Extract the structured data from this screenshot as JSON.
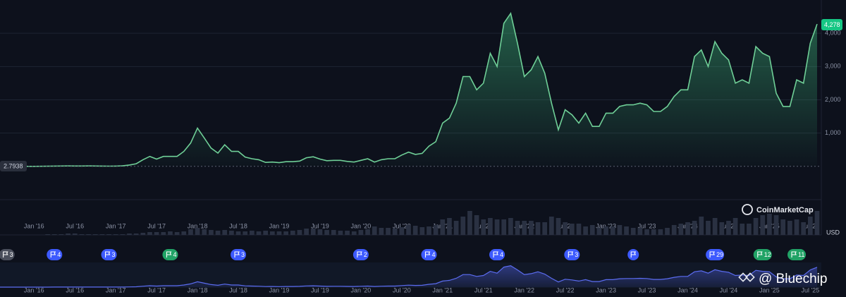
{
  "chart_data": {
    "type": "area",
    "start_price_label": "2.7938",
    "current_price_label": "4,278",
    "currency": "USD",
    "watermark": "CoinMarketCap",
    "credit": "@ Bluechip",
    "xlim": [
      "2015-08",
      "2025-08"
    ],
    "ylim": [
      -1000,
      5000
    ],
    "yticks": [
      {
        "value": 1000,
        "label": "1,000"
      },
      {
        "value": 2000,
        "label": "2,000"
      },
      {
        "value": 3000,
        "label": "3,000"
      },
      {
        "value": 4000,
        "label": "4,000"
      }
    ],
    "xticks": [
      {
        "value": "2016-01",
        "label": "Jan '16"
      },
      {
        "value": "2016-07",
        "label": "Jul '16"
      },
      {
        "value": "2017-01",
        "label": "Jan '17"
      },
      {
        "value": "2017-07",
        "label": "Jul '17"
      },
      {
        "value": "2018-01",
        "label": "Jan '18"
      },
      {
        "value": "2018-07",
        "label": "Jul '18"
      },
      {
        "value": "2019-01",
        "label": "Jan '19"
      },
      {
        "value": "2019-07",
        "label": "Jul '19"
      },
      {
        "value": "2020-01",
        "label": "Jan '20"
      },
      {
        "value": "2020-07",
        "label": "Jul '20"
      },
      {
        "value": "2021-01",
        "label": "Jan '21"
      },
      {
        "value": "2021-07",
        "label": "Jul '21"
      },
      {
        "value": "2022-01",
        "label": "Jan '22"
      },
      {
        "value": "2022-07",
        "label": "Jul '22"
      },
      {
        "value": "2023-01",
        "label": "Jan '23"
      },
      {
        "value": "2023-07",
        "label": "Jul '23"
      },
      {
        "value": "2024-01",
        "label": "Jan '24"
      },
      {
        "value": "2024-07",
        "label": "Jul '24"
      },
      {
        "value": "2025-01",
        "label": "Jan '25"
      },
      {
        "value": "2025-07",
        "label": "Jul '25"
      }
    ],
    "x": [
      "2015-08",
      "2015-09",
      "2015-10",
      "2015-11",
      "2015-12",
      "2016-01",
      "2016-02",
      "2016-03",
      "2016-04",
      "2016-05",
      "2016-06",
      "2016-07",
      "2016-08",
      "2016-09",
      "2016-10",
      "2016-11",
      "2016-12",
      "2017-01",
      "2017-02",
      "2017-03",
      "2017-04",
      "2017-05",
      "2017-06",
      "2017-07",
      "2017-08",
      "2017-09",
      "2017-10",
      "2017-11",
      "2017-12",
      "2018-01",
      "2018-02",
      "2018-03",
      "2018-04",
      "2018-05",
      "2018-06",
      "2018-07",
      "2018-08",
      "2018-09",
      "2018-10",
      "2018-11",
      "2018-12",
      "2019-01",
      "2019-02",
      "2019-03",
      "2019-04",
      "2019-05",
      "2019-06",
      "2019-07",
      "2019-08",
      "2019-09",
      "2019-10",
      "2019-11",
      "2019-12",
      "2020-01",
      "2020-02",
      "2020-03",
      "2020-04",
      "2020-05",
      "2020-06",
      "2020-07",
      "2020-08",
      "2020-09",
      "2020-10",
      "2020-11",
      "2020-12",
      "2021-01",
      "2021-02",
      "2021-03",
      "2021-04",
      "2021-05",
      "2021-06",
      "2021-07",
      "2021-08",
      "2021-09",
      "2021-10",
      "2021-11",
      "2021-12",
      "2022-01",
      "2022-02",
      "2022-03",
      "2022-04",
      "2022-05",
      "2022-06",
      "2022-07",
      "2022-08",
      "2022-09",
      "2022-10",
      "2022-11",
      "2022-12",
      "2023-01",
      "2023-02",
      "2023-03",
      "2023-04",
      "2023-05",
      "2023-06",
      "2023-07",
      "2023-08",
      "2023-09",
      "2023-10",
      "2023-11",
      "2023-12",
      "2024-01",
      "2024-02",
      "2024-03",
      "2024-04",
      "2024-05",
      "2024-06",
      "2024-07",
      "2024-08",
      "2024-09",
      "2024-10",
      "2024-11",
      "2024-12",
      "2025-01",
      "2025-02",
      "2025-03",
      "2025-04",
      "2025-05",
      "2025-06",
      "2025-07",
      "2025-08"
    ],
    "series": [
      {
        "name": "Price",
        "color": "#6fcf97",
        "values": [
          3,
          1,
          1,
          1,
          1,
          1,
          3,
          6,
          9,
          12,
          14,
          12,
          11,
          13,
          12,
          10,
          8,
          10,
          15,
          40,
          80,
          200,
          300,
          220,
          300,
          300,
          300,
          450,
          700,
          1150,
          850,
          550,
          400,
          650,
          450,
          450,
          280,
          230,
          200,
          120,
          130,
          110,
          140,
          140,
          160,
          260,
          290,
          220,
          170,
          180,
          180,
          150,
          130,
          180,
          230,
          130,
          200,
          230,
          230,
          340,
          430,
          360,
          390,
          610,
          740,
          1300,
          1450,
          1900,
          2700,
          2700,
          2300,
          2500,
          3400,
          3000,
          4300,
          4600,
          3700,
          2700,
          2900,
          3300,
          2800,
          1900,
          1100,
          1700,
          1550,
          1300,
          1600,
          1200,
          1200,
          1600,
          1600,
          1800,
          1850,
          1850,
          1900,
          1850,
          1650,
          1650,
          1800,
          2100,
          2300,
          2300,
          3300,
          3500,
          3000,
          3750,
          3400,
          3200,
          2500,
          2600,
          2500,
          3600,
          3400,
          3300,
          2200,
          1800,
          1800,
          2600,
          2500,
          3700,
          4278
        ]
      },
      {
        "name": "Volume",
        "color": "#2a3142",
        "axis": "volume",
        "values": [
          0,
          0,
          0,
          0,
          0,
          0,
          0,
          1,
          1,
          1,
          2,
          2,
          1,
          1,
          1,
          1,
          1,
          1,
          1,
          2,
          2,
          3,
          4,
          4,
          4,
          5,
          4,
          5,
          8,
          10,
          8,
          7,
          6,
          7,
          6,
          5,
          5,
          6,
          5,
          6,
          5,
          5,
          5,
          6,
          7,
          9,
          9,
          8,
          7,
          7,
          6,
          6,
          5,
          7,
          8,
          12,
          10,
          10,
          9,
          11,
          14,
          13,
          11,
          12,
          14,
          22,
          24,
          20,
          26,
          34,
          28,
          22,
          24,
          22,
          22,
          24,
          20,
          20,
          20,
          18,
          18,
          26,
          24,
          18,
          16,
          16,
          12,
          14,
          10,
          12,
          12,
          14,
          12,
          10,
          10,
          8,
          8,
          8,
          10,
          14,
          16,
          18,
          20,
          26,
          20,
          24,
          18,
          20,
          24,
          16,
          16,
          24,
          28,
          30,
          28,
          22,
          20,
          22,
          18,
          26,
          34
        ]
      }
    ],
    "volume_lim": [
      0,
      50
    ],
    "events": [
      {
        "kind": "history",
        "label": "3",
        "at": "2015-09"
      },
      {
        "kind": "flag",
        "label": "4",
        "at": "2016-04"
      },
      {
        "kind": "flag",
        "label": "3",
        "at": "2016-12"
      },
      {
        "kind": "doc",
        "label": "4",
        "at": "2017-09"
      },
      {
        "kind": "flag",
        "label": "3",
        "at": "2018-07"
      },
      {
        "kind": "flag",
        "label": "2",
        "at": "2020-01"
      },
      {
        "kind": "flag",
        "label": "4",
        "at": "2020-11"
      },
      {
        "kind": "flag",
        "label": "4",
        "at": "2021-09"
      },
      {
        "kind": "flag",
        "label": "3",
        "at": "2022-08"
      },
      {
        "kind": "flag",
        "label": null,
        "at": "2023-05"
      },
      {
        "kind": "flag",
        "label": "29",
        "at": "2024-05"
      },
      {
        "kind": "doc",
        "label": "12",
        "at": "2024-12"
      },
      {
        "kind": "doc",
        "label": "11",
        "at": "2025-05"
      }
    ]
  }
}
